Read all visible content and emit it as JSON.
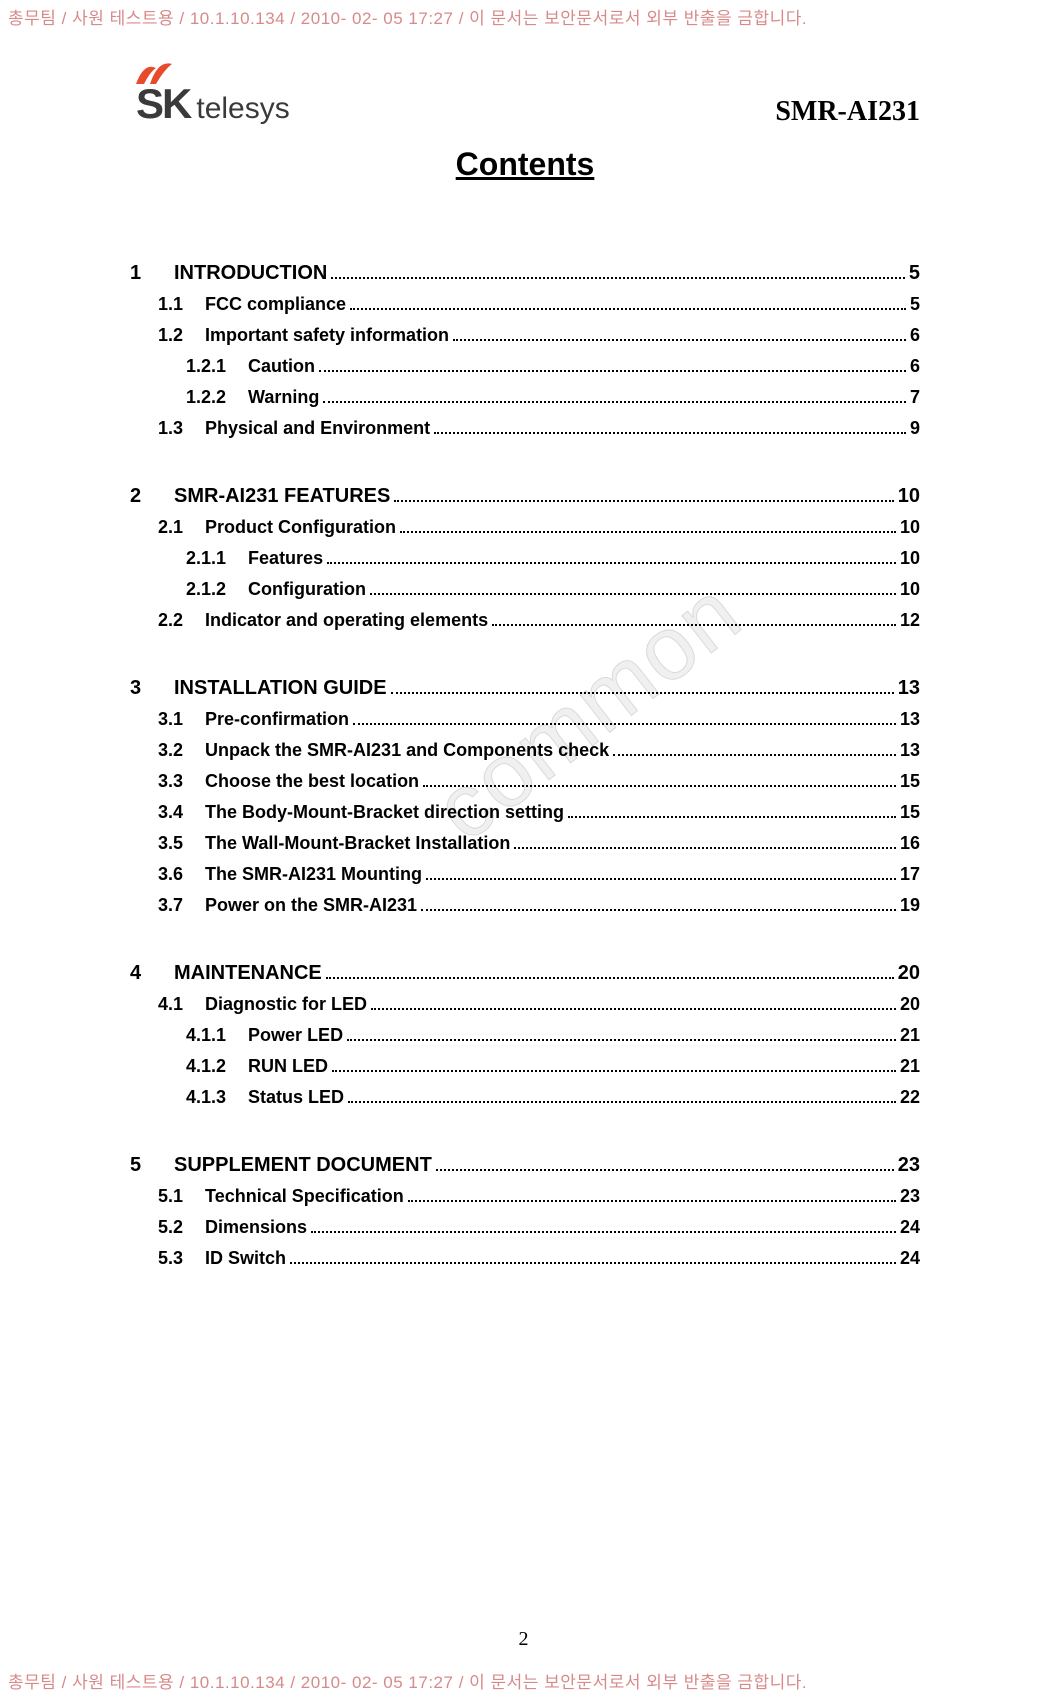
{
  "watermark_text": "총무팀 / 사원 테스트용 / 10.1.10.134 / 2010- 02- 05 17:27 /  이 문서는 보안문서로서 외부 반출을 금합니다.",
  "watermark_color": "#d88a8a",
  "logo": {
    "sk": "SK",
    "telesys": "telesys"
  },
  "doc_id": "SMR-AI231",
  "title": "Contents",
  "diag_watermark": "common",
  "page_number": "2",
  "toc": [
    {
      "num": "1",
      "label": "INTRODUCTION",
      "page": "5",
      "children": [
        {
          "num": "1.1",
          "label": "FCC compliance",
          "page": "5"
        },
        {
          "num": "1.2",
          "label": "Important safety information",
          "page": "6",
          "children": [
            {
              "num": "1.2.1",
              "label": "Caution",
              "page": "6"
            },
            {
              "num": "1.2.2",
              "label": "Warning",
              "page": "7"
            }
          ]
        },
        {
          "num": "1.3",
          "label": "Physical and Environment",
          "page": "9"
        }
      ]
    },
    {
      "num": "2",
      "label": "SMR-AI231 FEATURES",
      "page": "10",
      "children": [
        {
          "num": "2.1",
          "label": "Product Configuration",
          "page": "10",
          "children": [
            {
              "num": "2.1.1",
              "label": "Features",
              "page": "10"
            },
            {
              "num": "2.1.2",
              "label": "Configuration",
              "page": "10"
            }
          ]
        },
        {
          "num": "2.2",
          "label": "Indicator and operating elements",
          "page": "12"
        }
      ]
    },
    {
      "num": "3",
      "label": "INSTALLATION GUIDE",
      "page": "13",
      "children": [
        {
          "num": "3.1",
          "label": "Pre-confirmation",
          "page": "13"
        },
        {
          "num": "3.2",
          "label": "Unpack the SMR-AI231 and Components check",
          "page": "13"
        },
        {
          "num": "3.3",
          "label": "Choose the best location",
          "page": "15"
        },
        {
          "num": "3.4",
          "label": "The Body-Mount-Bracket direction setting",
          "page": "15"
        },
        {
          "num": "3.5",
          "label": "The Wall-Mount-Bracket Installation",
          "page": "16"
        },
        {
          "num": "3.6",
          "label": "The SMR-AI231 Mounting",
          "page": "17"
        },
        {
          "num": "3.7",
          "label": "Power on the SMR-AI231",
          "page": "19"
        }
      ]
    },
    {
      "num": "4",
      "label": "MAINTENANCE",
      "page": "20",
      "children": [
        {
          "num": "4.1",
          "label": "Diagnostic for LED",
          "page": "20",
          "children": [
            {
              "num": "4.1.1",
              "label": "Power LED",
              "page": "21"
            },
            {
              "num": "4.1.2",
              "label": "RUN LED",
              "page": "21"
            },
            {
              "num": "4.1.3",
              "label": "Status LED",
              "page": "22"
            }
          ]
        }
      ]
    },
    {
      "num": "5",
      "label": "SUPPLEMENT DOCUMENT",
      "page": "23",
      "children": [
        {
          "num": "5.1",
          "label": "Technical Specification",
          "page": "23"
        },
        {
          "num": "5.2",
          "label": "Dimensions",
          "page": "24"
        },
        {
          "num": "5.3",
          "label": "ID Switch",
          "page": "24"
        }
      ]
    }
  ]
}
